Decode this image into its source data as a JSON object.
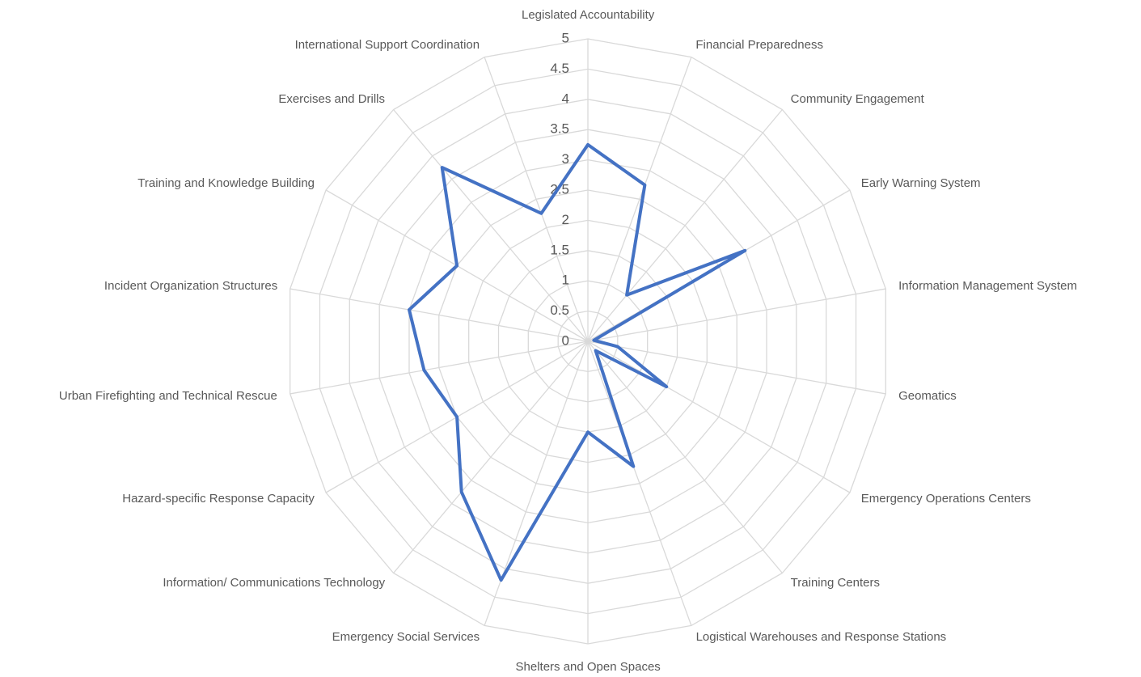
{
  "chart_data": {
    "type": "radar",
    "categories": [
      "Legislated Accountability",
      "Financial Preparedness",
      "Community Engagement",
      "Early Warning System",
      "Information Management System",
      "Geomatics",
      "Emergency Operations Centers",
      "Training Centers",
      "Logistical Warehouses and Response Stations",
      "Shelters and Open Spaces",
      "Emergency Social Services",
      "Information/ Communications Technology",
      "Hazard-specific Response Capacity",
      "Urban Firefighting and Technical Rescue",
      "Incident Organization Structures",
      "Training and Knowledge Building",
      "Exercises and Drills",
      "International Support Coordination"
    ],
    "values": [
      3.25,
      2.75,
      1.0,
      3.0,
      0.1,
      0.5,
      1.5,
      0.2,
      2.2,
      1.5,
      4.2,
      3.25,
      2.5,
      2.75,
      3.0,
      2.5,
      3.75,
      2.25
    ],
    "color": "#4472c4",
    "ylim": [
      0,
      5
    ],
    "yticks": [
      0,
      0.5,
      1,
      1.5,
      2,
      2.5,
      3,
      3.5,
      4,
      4.5,
      5
    ],
    "grid": true
  }
}
